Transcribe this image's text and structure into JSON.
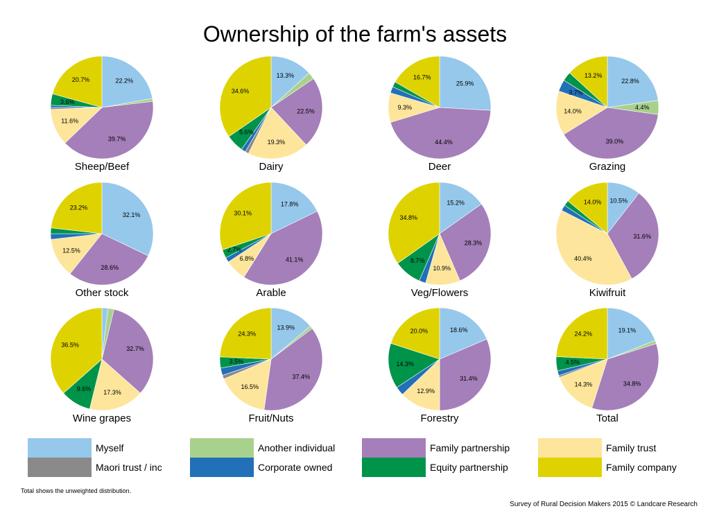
{
  "title": "Ownership of the farm's assets",
  "footnote": "Total shows the unweighted distribution.",
  "source": "Survey of Rural Decision Makers 2015 © Landcare Research",
  "colors": {
    "Myself": "#95c8eb",
    "Another individual": "#a9d18e",
    "Family partnership": "#a47fb9",
    "Family trust": "#fde59b",
    "Maori trust / inc": "#8a8a8a",
    "Corporate owned": "#2170b8",
    "Equity partnership": "#00934a",
    "Family company": "#ded300"
  },
  "legend": [
    {
      "label": "Myself",
      "color": "#95c8eb"
    },
    {
      "label": "Another individual",
      "color": "#a9d18e"
    },
    {
      "label": "Family partnership",
      "color": "#a47fb9"
    },
    {
      "label": "Family trust",
      "color": "#fde59b"
    },
    {
      "label": "Maori trust / inc",
      "color": "#8a8a8a"
    },
    {
      "label": "Corporate owned",
      "color": "#2170b8"
    },
    {
      "label": "Equity partnership",
      "color": "#00934a"
    },
    {
      "label": "Family company",
      "color": "#ded300"
    }
  ],
  "chart_data": [
    {
      "type": "pie",
      "title": "Sheep/Beef",
      "categories": [
        "Myself",
        "Another individual",
        "Family partnership",
        "Family trust",
        "Maori trust / inc",
        "Corporate owned",
        "Equity partnership",
        "Family company"
      ],
      "values": [
        22.2,
        0.9,
        39.7,
        11.6,
        0.6,
        0.7,
        3.6,
        20.7
      ],
      "labels": [
        "22.2%",
        "",
        "39.7%",
        "11.6%",
        "",
        "",
        "3.6%",
        "20.7%"
      ]
    },
    {
      "type": "pie",
      "title": "Dairy",
      "categories": [
        "Myself",
        "Another individual",
        "Family partnership",
        "Family trust",
        "Maori trust / inc",
        "Corporate owned",
        "Equity partnership",
        "Family company"
      ],
      "values": [
        13.3,
        2.2,
        22.5,
        19.3,
        1.1,
        1.4,
        5.6,
        34.6
      ],
      "labels": [
        "13.3%",
        "",
        "22.5%",
        "19.3%",
        "",
        "",
        "5.6%",
        "34.6%"
      ]
    },
    {
      "type": "pie",
      "title": "Deer",
      "categories": [
        "Myself",
        "Another individual",
        "Family partnership",
        "Family trust",
        "Maori trust / inc",
        "Corporate owned",
        "Equity partnership",
        "Family company"
      ],
      "values": [
        25.9,
        0.0,
        44.4,
        9.3,
        0.0,
        2.0,
        1.7,
        16.7
      ],
      "labels": [
        "25.9%",
        "",
        "44.4%",
        "9.3%",
        "",
        "",
        "",
        "16.7%"
      ]
    },
    {
      "type": "pie",
      "title": "Grazing",
      "categories": [
        "Myself",
        "Another individual",
        "Family partnership",
        "Family trust",
        "Maori trust / inc",
        "Corporate owned",
        "Equity partnership",
        "Family company"
      ],
      "values": [
        22.8,
        4.4,
        39.0,
        14.0,
        0.0,
        3.7,
        2.9,
        13.2
      ],
      "labels": [
        "22.8%",
        "4.4%",
        "39.0%",
        "14.0%",
        "",
        "3.7%",
        "",
        "13.2%"
      ]
    },
    {
      "type": "pie",
      "title": "Other stock",
      "categories": [
        "Myself",
        "Another individual",
        "Family partnership",
        "Family trust",
        "Maori trust / inc",
        "Corporate owned",
        "Equity partnership",
        "Family company"
      ],
      "values": [
        32.1,
        0.0,
        28.6,
        12.5,
        0.0,
        1.8,
        1.8,
        23.2
      ],
      "labels": [
        "32.1%",
        "",
        "28.6%",
        "12.5%",
        "",
        "",
        "",
        "23.2%"
      ]
    },
    {
      "type": "pie",
      "title": "Arable",
      "categories": [
        "Myself",
        "Another individual",
        "Family partnership",
        "Family trust",
        "Maori trust / inc",
        "Corporate owned",
        "Equity partnership",
        "Family company"
      ],
      "values": [
        17.8,
        0.0,
        41.1,
        6.8,
        0.0,
        1.5,
        2.7,
        30.1
      ],
      "labels": [
        "17.8%",
        "",
        "41.1%",
        "6.8%",
        "",
        "",
        "2.7%",
        "30.1%"
      ]
    },
    {
      "type": "pie",
      "title": "Veg/Flowers",
      "categories": [
        "Myself",
        "Another individual",
        "Family partnership",
        "Family trust",
        "Maori trust / inc",
        "Corporate owned",
        "Equity partnership",
        "Family company"
      ],
      "values": [
        15.2,
        0.0,
        28.3,
        10.9,
        0.0,
        2.1,
        8.7,
        34.8
      ],
      "labels": [
        "15.2%",
        "",
        "28.3%",
        "10.9%",
        "",
        "",
        "8.7%",
        "34.8%"
      ]
    },
    {
      "type": "pie",
      "title": "Kiwifruit",
      "categories": [
        "Myself",
        "Another individual",
        "Family partnership",
        "Family trust",
        "Maori trust / inc",
        "Corporate owned",
        "Equity partnership",
        "Family company"
      ],
      "values": [
        10.5,
        0.0,
        31.6,
        40.4,
        0.0,
        1.8,
        1.7,
        14.0
      ],
      "labels": [
        "10.5%",
        "",
        "31.6%",
        "40.4%",
        "",
        "",
        "",
        "14.0%"
      ]
    },
    {
      "type": "pie",
      "title": "Wine grapes",
      "categories": [
        "Myself",
        "Another individual",
        "Family partnership",
        "Family trust",
        "Maori trust / inc",
        "Corporate owned",
        "Equity partnership",
        "Family company"
      ],
      "values": [
        1.9,
        1.9,
        32.7,
        17.3,
        0.0,
        0.0,
        9.6,
        36.5
      ],
      "labels": [
        "",
        "",
        "32.7%",
        "17.3%",
        "",
        "",
        "9.6%",
        "36.5%"
      ]
    },
    {
      "type": "pie",
      "title": "Fruit/Nuts",
      "categories": [
        "Myself",
        "Another individual",
        "Family partnership",
        "Family trust",
        "Maori trust / inc",
        "Corporate owned",
        "Equity partnership",
        "Family company"
      ],
      "values": [
        13.9,
        0.9,
        37.4,
        16.5,
        1.2,
        2.3,
        3.5,
        24.3
      ],
      "labels": [
        "13.9%",
        "",
        "37.4%",
        "16.5%",
        "",
        "",
        "3.5%",
        "24.3%"
      ]
    },
    {
      "type": "pie",
      "title": "Forestry",
      "categories": [
        "Myself",
        "Another individual",
        "Family partnership",
        "Family trust",
        "Maori trust / inc",
        "Corporate owned",
        "Equity partnership",
        "Family company"
      ],
      "values": [
        18.6,
        0.0,
        31.4,
        12.9,
        0.0,
        2.8,
        14.3,
        20.0
      ],
      "labels": [
        "18.6%",
        "",
        "31.4%",
        "12.9%",
        "",
        "",
        "14.3%",
        "20.0%"
      ]
    },
    {
      "type": "pie",
      "title": "Total",
      "categories": [
        "Myself",
        "Another individual",
        "Family partnership",
        "Family trust",
        "Maori trust / inc",
        "Corporate owned",
        "Equity partnership",
        "Family company"
      ],
      "values": [
        19.1,
        1.0,
        34.8,
        14.3,
        0.6,
        1.5,
        4.5,
        24.2
      ],
      "labels": [
        "19.1%",
        "",
        "34.8%",
        "14.3%",
        "",
        "",
        "4.5%",
        "24.2%"
      ]
    }
  ]
}
